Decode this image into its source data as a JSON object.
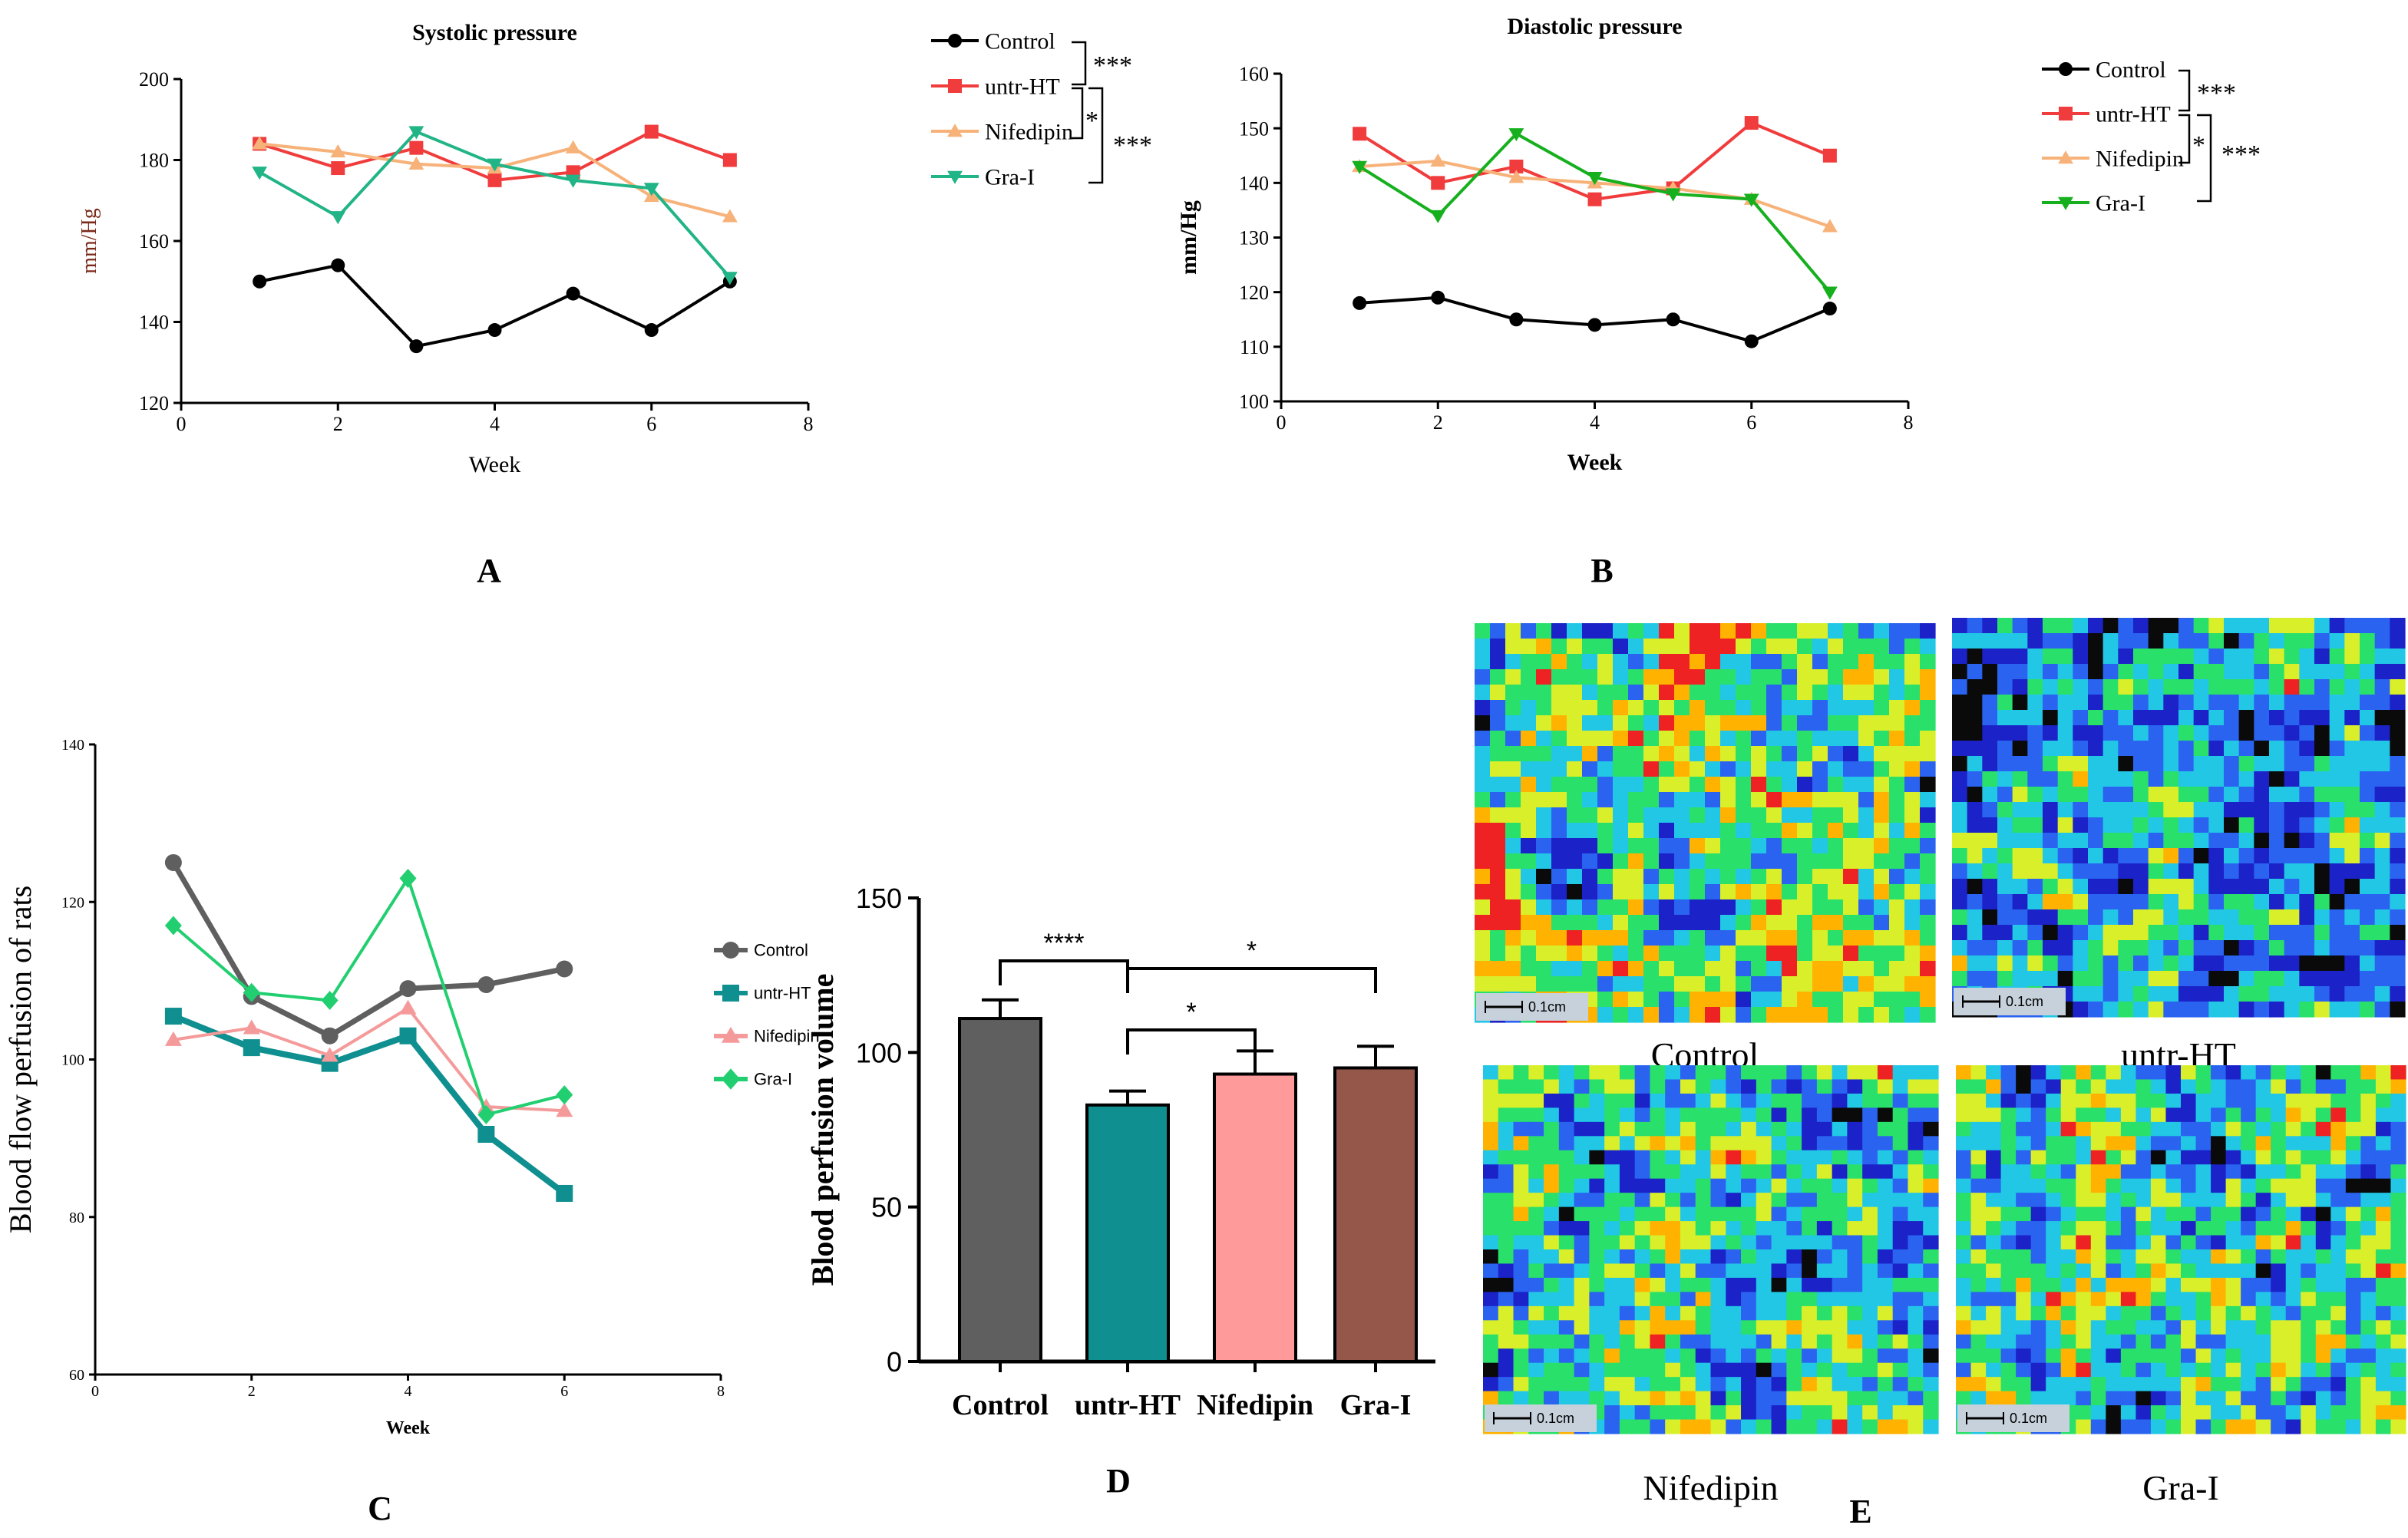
{
  "panel_labels": {
    "a": "A",
    "b": "B",
    "c": "C",
    "d": "D",
    "e": "E"
  },
  "heatmap_captions": [
    "Control",
    "untr-HT",
    "Nifedipin",
    "Gra-I"
  ],
  "heatmap_scale": "0.1cm",
  "heatmap_palette": [
    "#0a0a0a",
    "#1a22c8",
    "#2a63f0",
    "#22c7e6",
    "#29e06a",
    "#d9ef2a",
    "#ffb300",
    "#ee2222"
  ],
  "chart_data": [
    {
      "id": "A",
      "type": "line",
      "title": "Systolic pressure",
      "xlabel": "Week",
      "ylabel": "mm/Hg",
      "xlim": [
        0,
        8
      ],
      "ylim": [
        120,
        200
      ],
      "xticks": [
        0,
        2,
        4,
        6,
        8
      ],
      "yticks": [
        120,
        140,
        160,
        180,
        200
      ],
      "x": [
        1,
        2,
        3,
        4,
        5,
        6,
        7
      ],
      "series": [
        {
          "name": "Control",
          "color": "#000000",
          "marker": "circle",
          "values": [
            150,
            154,
            134,
            138,
            147,
            138,
            150
          ]
        },
        {
          "name": "untr-HT",
          "color": "#f03c3c",
          "marker": "square",
          "values": [
            184,
            178,
            183,
            175,
            177,
            187,
            180
          ]
        },
        {
          "name": "Nifedipin",
          "color": "#f7b27a",
          "marker": "triangle-up",
          "values": [
            184,
            182,
            179,
            178,
            183,
            171,
            166
          ]
        },
        {
          "name": "Gra-I",
          "color": "#20b486",
          "marker": "triangle-down",
          "values": [
            177,
            166,
            187,
            179,
            175,
            173,
            151
          ]
        }
      ],
      "annotations": [
        "***",
        "*",
        "***"
      ]
    },
    {
      "id": "B",
      "type": "line",
      "title": "Diastolic pressure",
      "xlabel": "Week",
      "ylabel": "mm/Hg",
      "xlim": [
        0,
        8
      ],
      "ylim": [
        100,
        160
      ],
      "xticks": [
        0,
        2,
        4,
        6,
        8
      ],
      "yticks": [
        100,
        110,
        120,
        130,
        140,
        150,
        160
      ],
      "x": [
        1,
        2,
        3,
        4,
        5,
        6,
        7
      ],
      "series": [
        {
          "name": "Control",
          "color": "#000000",
          "marker": "circle",
          "values": [
            118,
            119,
            115,
            114,
            115,
            111,
            117
          ]
        },
        {
          "name": "untr-HT",
          "color": "#f03c3c",
          "marker": "square",
          "values": [
            149,
            140,
            143,
            137,
            139,
            151,
            145
          ]
        },
        {
          "name": "Nifedipin",
          "color": "#f7b27a",
          "marker": "triangle-up",
          "values": [
            143,
            144,
            141,
            140,
            139,
            137,
            132
          ]
        },
        {
          "name": "Gra-I",
          "color": "#16b01e",
          "marker": "triangle-down",
          "values": [
            143,
            134,
            149,
            141,
            138,
            137,
            120
          ]
        }
      ],
      "annotations": [
        "***",
        "*",
        "***"
      ]
    },
    {
      "id": "C",
      "type": "line",
      "title": "",
      "xlabel": "Week",
      "ylabel": "Blood flow perfusion of rats",
      "xlim": [
        0,
        8
      ],
      "ylim": [
        60,
        140
      ],
      "xticks": [
        0,
        2,
        4,
        6,
        8
      ],
      "yticks": [
        60,
        80,
        100,
        120,
        140
      ],
      "x": [
        1,
        2,
        3,
        4,
        5,
        6
      ],
      "series": [
        {
          "name": "Control",
          "color": "#5f5f5f",
          "marker": "circle",
          "values": [
            125,
            108,
            103,
            109,
            109.5,
            111.5
          ]
        },
        {
          "name": "untr-HT",
          "color": "#0f8f8f",
          "marker": "square",
          "values": [
            105.5,
            101.5,
            99.5,
            103,
            90.5,
            83
          ]
        },
        {
          "name": "Nifedipin",
          "color": "#f59a9a",
          "marker": "triangle-up",
          "values": [
            102.5,
            104,
            100.5,
            106.5,
            94,
            93.5
          ]
        },
        {
          "name": "Gra-I",
          "color": "#22cf70",
          "marker": "diamond",
          "values": [
            117,
            108.5,
            107.5,
            123,
            93,
            95.5
          ]
        }
      ]
    },
    {
      "id": "D",
      "type": "bar",
      "title": "",
      "xlabel": "",
      "ylabel": "Blood perfusion volume",
      "ylim": [
        0,
        150
      ],
      "yticks": [
        0,
        50,
        100,
        150
      ],
      "categories": [
        "Control",
        "untr-HT",
        "Nifedipin",
        "Gra-I"
      ],
      "values": [
        111,
        83,
        93,
        95
      ],
      "errors": [
        6,
        4.5,
        7.5,
        7
      ],
      "colors": [
        "#5f5f5f",
        "#0f8f8f",
        "#ff9a9a",
        "#95574a"
      ],
      "significance": [
        {
          "from": 0,
          "to": 1,
          "label": "****"
        },
        {
          "from": 1,
          "to": 3,
          "label": "*"
        },
        {
          "from": 1,
          "to": 2,
          "label": "*"
        }
      ]
    }
  ]
}
